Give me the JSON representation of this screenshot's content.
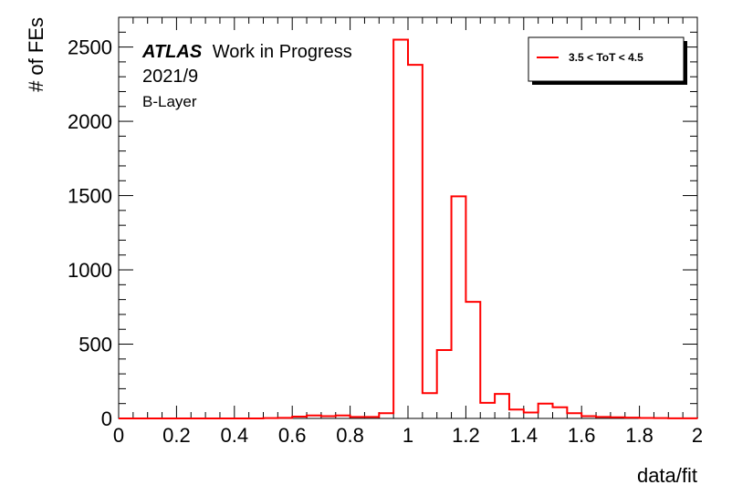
{
  "chart_data": {
    "type": "histogram",
    "xlabel": "data/fit",
    "ylabel": "# of FEs",
    "xlim": [
      0,
      2
    ],
    "ylim": [
      0,
      2700
    ],
    "x_ticks": [
      "0",
      "0.2",
      "0.4",
      "0.6",
      "0.8",
      "1",
      "1.2",
      "1.4",
      "1.6",
      "1.8",
      "2"
    ],
    "y_ticks": [
      "0",
      "500",
      "1000",
      "1500",
      "2000",
      "2500"
    ],
    "bin_width": 0.05,
    "bin_edges": [
      0,
      0.05,
      0.1,
      0.15,
      0.2,
      0.25,
      0.3,
      0.35,
      0.4,
      0.45,
      0.5,
      0.55,
      0.6,
      0.65,
      0.7,
      0.75,
      0.8,
      0.85,
      0.9,
      0.95,
      1.0,
      1.05,
      1.1,
      1.15,
      1.2,
      1.25,
      1.3,
      1.35,
      1.4,
      1.45,
      1.5,
      1.55,
      1.6,
      1.65,
      1.7,
      1.75,
      1.8,
      1.85,
      1.9,
      1.95,
      2.0
    ],
    "series": [
      {
        "name": "3.5 < ToT < 4.5",
        "color": "#ff0000",
        "values": [
          0,
          0,
          0,
          0,
          0,
          0,
          0,
          0,
          0,
          0,
          2,
          4,
          12,
          20,
          15,
          20,
          10,
          10,
          35,
          2550,
          2380,
          170,
          460,
          1495,
          785,
          105,
          165,
          60,
          40,
          100,
          75,
          35,
          15,
          10,
          8,
          5,
          3,
          2,
          1,
          1
        ]
      }
    ],
    "annotations": {
      "experiment": "ATLAS",
      "status": "Work in Progress",
      "date": "2021/9",
      "layer": "B-Layer"
    },
    "legend": {
      "entries": [
        "3.5 < ToT < 4.5"
      ],
      "position": "top-right"
    },
    "grid": false
  }
}
